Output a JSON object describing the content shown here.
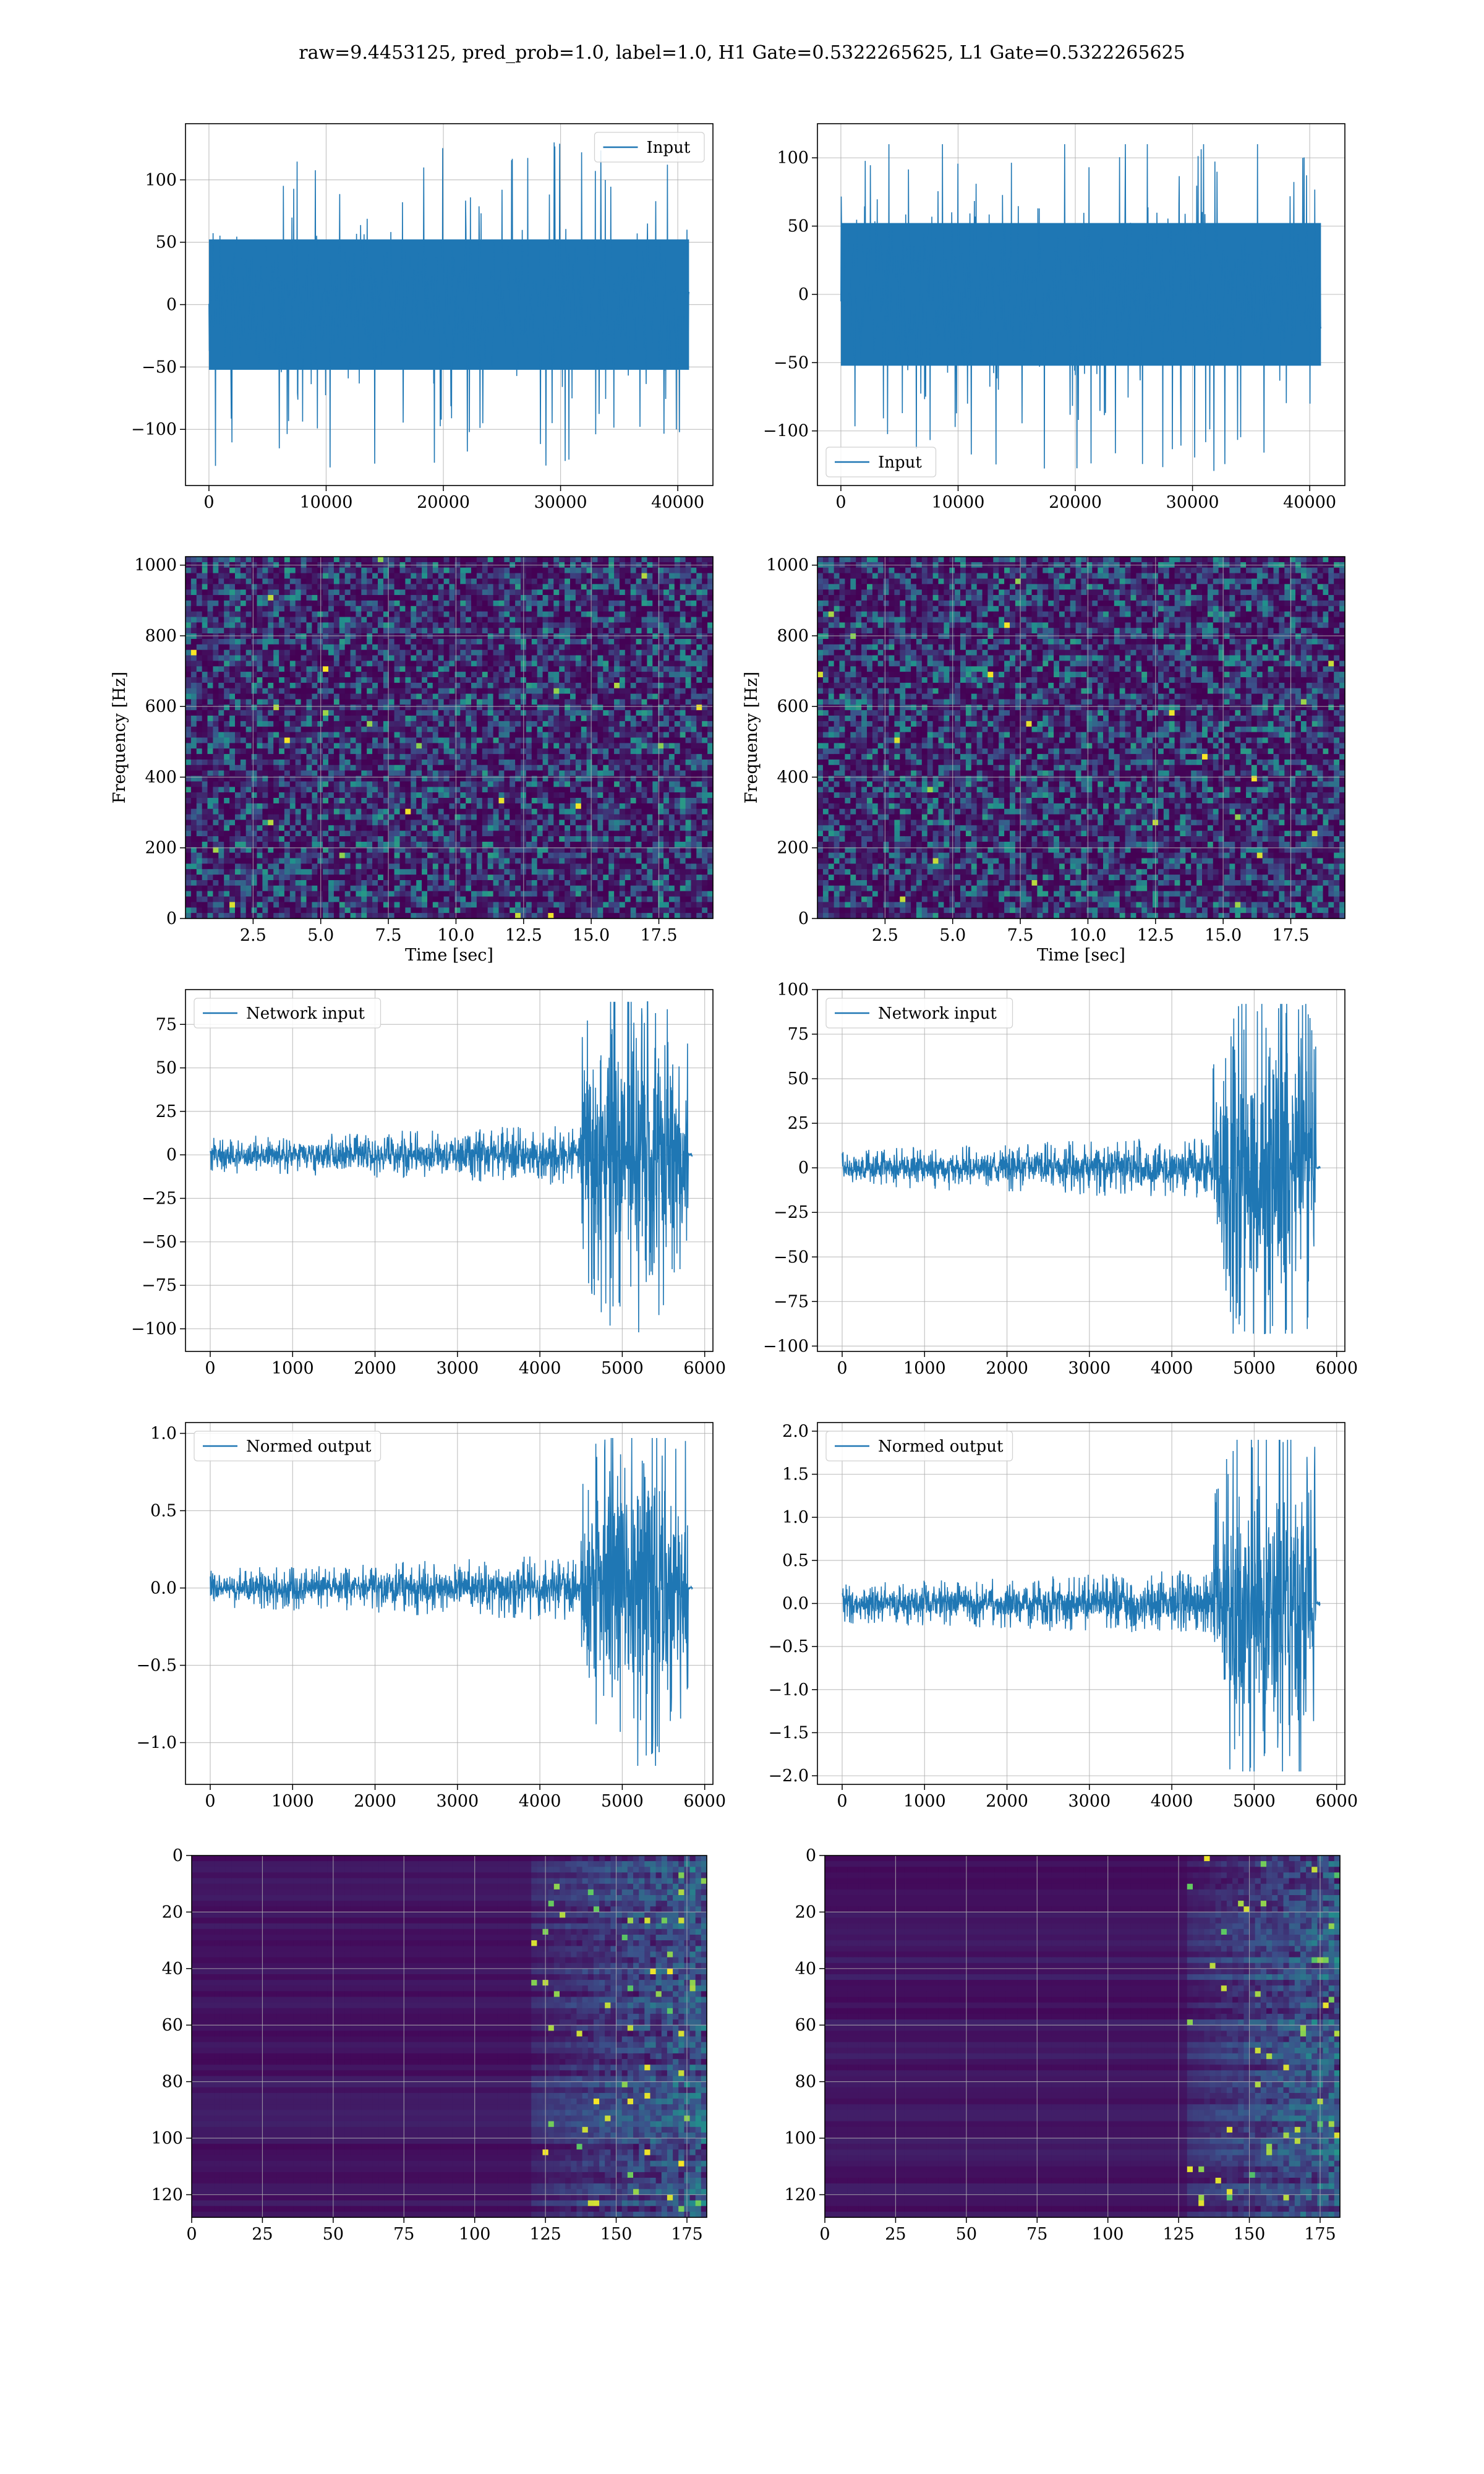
{
  "title": "raw=9.4453125, pred_prob=1.0, label=1.0, H1 Gate=0.5322265625, L1 Gate=0.5322265625",
  "colors": {
    "series": "#1f77b4",
    "grid": "#b0b0b0",
    "heat_low": "#440154",
    "heat_mid": "#21918c",
    "heat_high": "#fde725"
  },
  "chart_data": [
    {
      "id": "h1-input",
      "type": "line",
      "title": "",
      "xlabel": "",
      "ylabel": "",
      "series": [
        {
          "name": "Input",
          "amplitude": 55,
          "peak_min": -135,
          "peak_max": 130,
          "n_samples": 40960
        }
      ],
      "legend": "top-right",
      "grid": true,
      "xlim": [
        -2000,
        43000
      ],
      "ylim": [
        -145,
        145
      ],
      "xticks": [
        0,
        10000,
        20000,
        30000,
        40000
      ],
      "yticks": [
        -100,
        -50,
        0,
        50,
        100
      ]
    },
    {
      "id": "l1-input",
      "type": "line",
      "title": "",
      "xlabel": "",
      "ylabel": "",
      "series": [
        {
          "name": "Input",
          "amplitude": 55,
          "peak_min": -130,
          "peak_max": 110,
          "n_samples": 40960
        }
      ],
      "legend": "lower-left",
      "grid": true,
      "xlim": [
        -2000,
        43000
      ],
      "ylim": [
        -140,
        125
      ],
      "xticks": [
        0,
        10000,
        20000,
        30000,
        40000
      ],
      "yticks": [
        -100,
        -50,
        0,
        50,
        100
      ]
    },
    {
      "id": "h1-spectrogram",
      "type": "heatmap",
      "title": "",
      "xlabel": "Time [sec]",
      "ylabel": "Frequency [Hz]",
      "grid": true,
      "xlim": [
        0,
        19.5
      ],
      "ylim": [
        0,
        1024
      ],
      "xticks": [
        "2.5",
        "5.0",
        "7.5",
        "10.0",
        "12.5",
        "15.0",
        "17.5"
      ],
      "yticks": [
        0,
        200,
        400,
        600,
        800,
        1000
      ]
    },
    {
      "id": "l1-spectrogram",
      "type": "heatmap",
      "title": "",
      "xlabel": "Time [sec]",
      "ylabel": "Frequency [Hz]",
      "grid": true,
      "xlim": [
        0,
        19.5
      ],
      "ylim": [
        0,
        1024
      ],
      "xticks": [
        "2.5",
        "5.0",
        "7.5",
        "10.0",
        "12.5",
        "15.0",
        "17.5"
      ],
      "yticks": [
        0,
        200,
        400,
        600,
        800,
        1000
      ]
    },
    {
      "id": "h1-network-input",
      "type": "line",
      "title": "",
      "xlabel": "",
      "ylabel": "",
      "series": [
        {
          "name": "Network input",
          "baseline": 10,
          "peak": 88,
          "peak_min": -102,
          "burst_start": 4500,
          "end": 5800,
          "tail_end": 5850
        }
      ],
      "legend": "top-left",
      "grid": true,
      "xlim": [
        -300,
        6100
      ],
      "ylim": [
        -113,
        95
      ],
      "xticks": [
        0,
        1000,
        2000,
        3000,
        4000,
        5000,
        6000
      ],
      "yticks": [
        -100,
        -75,
        -50,
        -25,
        0,
        25,
        50,
        75
      ]
    },
    {
      "id": "l1-network-input",
      "type": "line",
      "title": "",
      "xlabel": "",
      "ylabel": "",
      "series": [
        {
          "name": "Network input",
          "baseline": 10,
          "peak": 92,
          "peak_min": -93,
          "burst_start": 4500,
          "end": 5750,
          "tail_end": 5800
        }
      ],
      "legend": "top-left",
      "grid": true,
      "xlim": [
        -300,
        6100
      ],
      "ylim": [
        -103,
        100
      ],
      "xticks": [
        0,
        1000,
        2000,
        3000,
        4000,
        5000,
        6000
      ],
      "yticks": [
        -100,
        -75,
        -50,
        -25,
        0,
        25,
        50,
        75,
        100
      ]
    },
    {
      "id": "h1-normed-output",
      "type": "line",
      "title": "",
      "xlabel": "",
      "ylabel": "",
      "series": [
        {
          "name": "Normed output",
          "baseline": 0.12,
          "peak": 0.97,
          "peak_min": -1.15,
          "burst_start": 4500,
          "end": 5800,
          "tail_end": 5850
        }
      ],
      "legend": "top-left",
      "grid": true,
      "xlim": [
        -300,
        6100
      ],
      "ylim": [
        -1.27,
        1.07
      ],
      "xticks": [
        0,
        1000,
        2000,
        3000,
        4000,
        5000,
        6000
      ],
      "yticks": [
        "-1.0",
        "-0.5",
        "0.0",
        "0.5",
        "1.0"
      ]
    },
    {
      "id": "l1-normed-output",
      "type": "line",
      "title": "",
      "xlabel": "",
      "ylabel": "",
      "series": [
        {
          "name": "Normed output",
          "baseline": 0.22,
          "peak": 1.9,
          "peak_min": -1.95,
          "burst_start": 4500,
          "end": 5750,
          "tail_end": 5800
        }
      ],
      "legend": "top-left",
      "grid": true,
      "xlim": [
        -300,
        6100
      ],
      "ylim": [
        -2.1,
        2.1
      ],
      "xticks": [
        0,
        1000,
        2000,
        3000,
        4000,
        5000,
        6000
      ],
      "yticks": [
        "-2.0",
        "-1.5",
        "-1.0",
        "-0.5",
        "0.0",
        "0.5",
        "1.0",
        "1.5",
        "2.0"
      ]
    },
    {
      "id": "h1-feature-map",
      "type": "heatmap",
      "title": "",
      "xlabel": "",
      "ylabel": "",
      "grid": true,
      "xlim": [
        0,
        182
      ],
      "ylim": [
        128,
        0
      ],
      "activity_start": 120,
      "xticks": [
        0,
        25,
        50,
        75,
        100,
        125,
        150,
        175
      ],
      "yticks": [
        0,
        20,
        40,
        60,
        80,
        100,
        120
      ]
    },
    {
      "id": "l1-feature-map",
      "type": "heatmap",
      "title": "",
      "xlabel": "",
      "ylabel": "",
      "grid": true,
      "xlim": [
        0,
        182
      ],
      "ylim": [
        128,
        0
      ],
      "activity_start": 128,
      "xticks": [
        0,
        25,
        50,
        75,
        100,
        125,
        150,
        175
      ],
      "yticks": [
        0,
        20,
        40,
        60,
        80,
        100,
        120
      ]
    }
  ]
}
